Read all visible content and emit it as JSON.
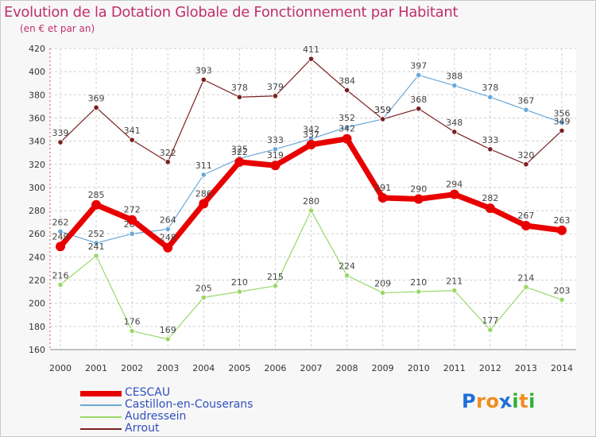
{
  "title": "Evolution de la Dotation Globale de Fonctionnement par Habitant",
  "subtitle": "(en € et par an)",
  "logo": {
    "letters": [
      "P",
      "r",
      "o",
      "x",
      "i",
      "t",
      "i"
    ],
    "colors": [
      "#1e6fd8",
      "#f08c1e",
      "#f08c1e",
      "#1e6fd8",
      "#30b030",
      "#f08c1e",
      "#30b030"
    ]
  },
  "chart_data": {
    "type": "line",
    "title": "Evolution de la Dotation Globale de Fonctionnement par Habitant",
    "subtitle": "(en € et par an)",
    "x": [
      "2000",
      "2001",
      "2002",
      "2003",
      "2004",
      "2005",
      "2006",
      "2007",
      "2008",
      "2009",
      "2010",
      "2011",
      "2012",
      "2013",
      "2014"
    ],
    "ylim": [
      160,
      420
    ],
    "yticks": [
      160,
      180,
      200,
      220,
      240,
      260,
      280,
      300,
      320,
      340,
      360,
      380,
      400,
      420
    ],
    "grid": true,
    "legend_position": "bottom-left",
    "series": [
      {
        "name": "CESCAU",
        "color": "#e80000",
        "values": [
          249,
          285,
          272,
          248,
          286,
          322,
          319,
          337,
          342,
          291,
          290,
          294,
          282,
          267,
          263
        ]
      },
      {
        "name": "Castillon-en-Couserans",
        "color": "#6aa8d8",
        "values": [
          262,
          252,
          260,
          264,
          311,
          325,
          333,
          342,
          352,
          359,
          397,
          388,
          378,
          367,
          356
        ]
      },
      {
        "name": "Audressein",
        "color": "#9ad86a",
        "values": [
          216,
          241,
          176,
          169,
          205,
          210,
          215,
          280,
          224,
          209,
          210,
          211,
          177,
          214,
          203
        ]
      },
      {
        "name": "Arrout",
        "color": "#7a2020",
        "values": [
          339,
          369,
          341,
          322,
          393,
          378,
          379,
          411,
          384,
          359,
          368,
          348,
          333,
          320,
          349
        ]
      }
    ]
  }
}
